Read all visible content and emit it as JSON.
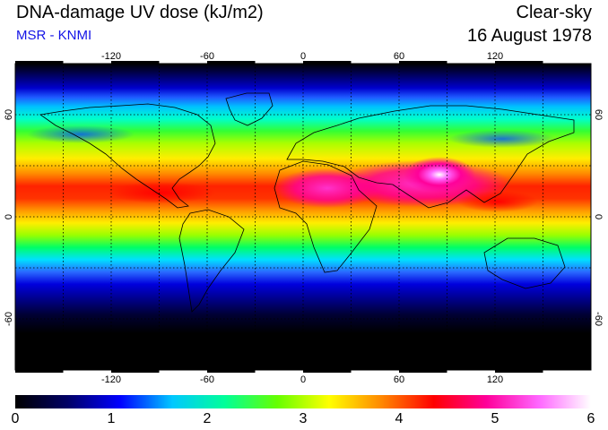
{
  "header": {
    "title": "DNA-damage UV dose (kJ/m2)",
    "source": "MSR - KNMI",
    "condition": "Clear-sky",
    "date": "16 August 1978"
  },
  "map": {
    "projection": "equirectangular",
    "lon_range": [
      -180,
      180
    ],
    "lat_range": [
      -90,
      90
    ],
    "grid": "dotted",
    "lon_ticks": [
      "-120",
      "-60",
      "0",
      "60",
      "120"
    ],
    "lat_ticks_left": [
      "60",
      "0",
      "-60"
    ],
    "lat_ticks_right": [
      "60",
      "0",
      "-60"
    ]
  },
  "colorbar": {
    "min": 0,
    "max": 6,
    "ticks": [
      "0",
      "1",
      "2",
      "3",
      "4",
      "5",
      "6"
    ],
    "colors": [
      "#000000",
      "#000066",
      "#0000ff",
      "#00c8ff",
      "#00ff99",
      "#66ff00",
      "#ffff00",
      "#ff8800",
      "#ff0000",
      "#ff0099",
      "#ff66ff",
      "#ffffff"
    ]
  },
  "colors": {
    "subtitle": "#1414e6",
    "grid": "#000000",
    "coastline": "#000000"
  }
}
